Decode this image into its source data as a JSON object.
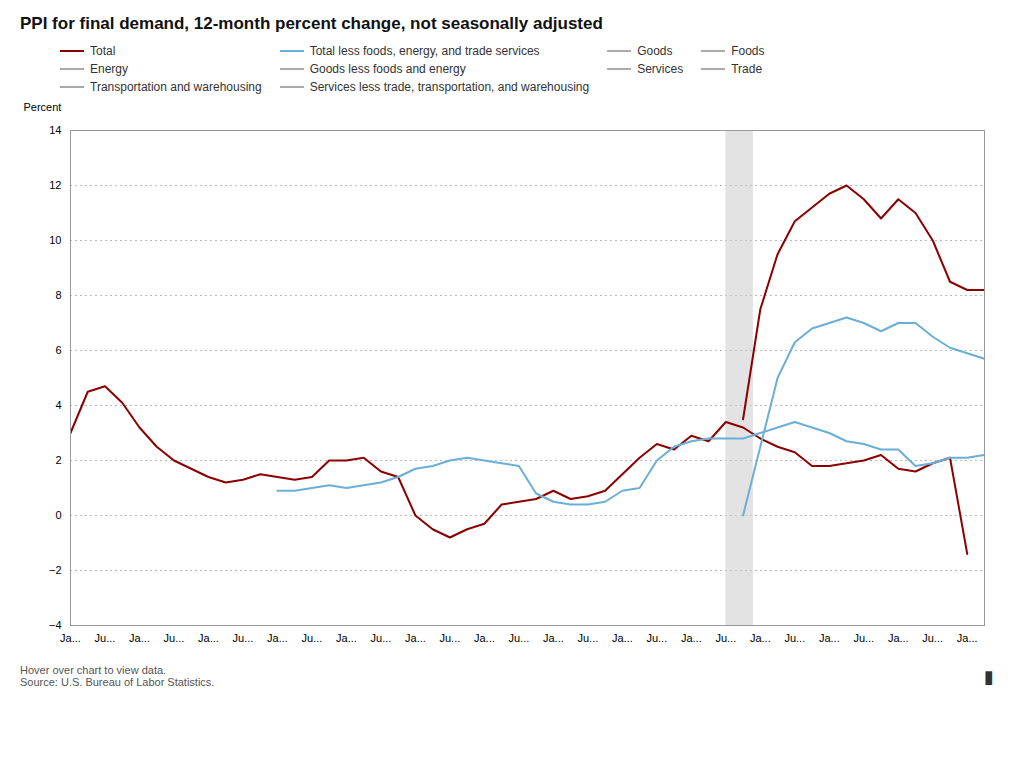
{
  "chart_data": {
    "type": "line",
    "title": "PPI for final demand, 12-month percent change, not seasonally adjusted",
    "ylabel": "Percent",
    "ylim": [
      -4.0,
      14.0
    ],
    "yticks": [
      -4,
      -2,
      0,
      2,
      4,
      6,
      8,
      10,
      12,
      14
    ],
    "xlim": [
      0,
      26.5
    ],
    "xticks": [
      {
        "value": 0,
        "label": "Ja..."
      },
      {
        "value": 1,
        "label": "Ju..."
      },
      {
        "value": 2,
        "label": "Ja..."
      },
      {
        "value": 3,
        "label": "Ju..."
      },
      {
        "value": 4,
        "label": "Ja..."
      },
      {
        "value": 5,
        "label": "Ju..."
      },
      {
        "value": 6,
        "label": "Ja..."
      },
      {
        "value": 7,
        "label": "Ju..."
      },
      {
        "value": 8,
        "label": "Ja..."
      },
      {
        "value": 9,
        "label": "Ju..."
      },
      {
        "value": 10,
        "label": "Ja..."
      },
      {
        "value": 11,
        "label": "Ju..."
      },
      {
        "value": 12,
        "label": "Ja..."
      },
      {
        "value": 13,
        "label": "Ju..."
      },
      {
        "value": 14,
        "label": "Ja..."
      },
      {
        "value": 15,
        "label": "Ju..."
      },
      {
        "value": 16,
        "label": "Ja..."
      },
      {
        "value": 17,
        "label": "Ju..."
      },
      {
        "value": 18,
        "label": "Ja..."
      },
      {
        "value": 19,
        "label": "Ju..."
      },
      {
        "value": 20,
        "label": "Ja..."
      },
      {
        "value": 21,
        "label": "Ju..."
      },
      {
        "value": 22,
        "label": "Ja..."
      },
      {
        "value": 23,
        "label": "Ju..."
      },
      {
        "value": 24,
        "label": "Ja..."
      },
      {
        "value": 25,
        "label": "Ju..."
      },
      {
        "value": 26,
        "label": "Ja..."
      }
    ],
    "grid": true,
    "shaded_region": {
      "x": [
        19.0,
        19.8
      ],
      "color": "#cccccc"
    },
    "series": [
      {
        "name": "Total",
        "color": "#8b0000",
        "x": [
          0,
          0.5,
          1,
          1.5,
          2,
          2.5,
          3,
          3.5,
          4,
          4.5,
          5,
          5.5,
          6,
          6.5,
          7,
          7.5,
          8,
          8.5,
          9,
          9.5,
          10,
          10.5,
          11,
          11.5,
          12,
          12.5,
          13,
          13.5,
          14,
          14.5,
          15,
          15.5,
          16,
          16.5,
          17,
          17.5,
          18,
          18.5,
          19,
          19.5,
          20,
          20.5,
          21,
          21.5,
          22,
          22.5,
          23,
          23.5,
          24,
          24.5,
          25,
          25.5,
          26,
          null,
          19.5,
          20,
          20.5,
          21,
          21.5,
          22,
          22.5,
          23,
          23.5,
          24,
          24.5,
          25,
          25.5,
          26,
          26.5
        ],
        "values": [
          3.0,
          4.5,
          4.7,
          4.1,
          3.2,
          2.5,
          2.0,
          1.7,
          1.4,
          1.2,
          1.3,
          1.5,
          1.4,
          1.3,
          1.4,
          2.0,
          2.0,
          2.1,
          1.6,
          1.4,
          0.0,
          -0.5,
          -0.8,
          -0.5,
          -0.3,
          0.4,
          0.5,
          0.6,
          0.9,
          0.6,
          0.7,
          0.9,
          1.5,
          2.1,
          2.6,
          2.4,
          2.9,
          2.7,
          3.4,
          3.2,
          2.8,
          2.5,
          2.3,
          1.8,
          1.8,
          1.9,
          2.0,
          2.2,
          1.7,
          1.6,
          1.9,
          2.1,
          -1.4,
          null,
          3.5,
          7.5,
          9.5,
          10.7,
          11.2,
          11.7,
          12.0,
          11.5,
          10.8,
          11.5,
          11.0,
          10.0,
          8.5,
          8.2,
          8.2
        ]
      },
      {
        "name": "Total less foods, energy, and trade services",
        "color": "#6baed6",
        "x": [
          6,
          6.5,
          7,
          7.5,
          8,
          8.5,
          9,
          9.5,
          10,
          10.5,
          11,
          11.5,
          12,
          12.5,
          13,
          13.5,
          14,
          14.5,
          15,
          15.5,
          16,
          16.5,
          17,
          17.5,
          18,
          18.5,
          19,
          19.5,
          20,
          20.5,
          21,
          21.5,
          22,
          22.5,
          23,
          23.5,
          24,
          24.5,
          25,
          25.5,
          26,
          26.5,
          null,
          19.5,
          20,
          20.5,
          21,
          21.5,
          22,
          22.5,
          23,
          23.5,
          24,
          24.5,
          25,
          25.5,
          26,
          26.5
        ],
        "values": [
          0.9,
          0.9,
          1.0,
          1.1,
          1.0,
          1.1,
          1.2,
          1.4,
          1.7,
          1.8,
          2.0,
          2.1,
          2.0,
          1.9,
          1.8,
          0.8,
          0.5,
          0.4,
          0.4,
          0.5,
          0.9,
          1.0,
          2.0,
          2.5,
          2.7,
          2.8,
          2.8,
          2.8,
          3.0,
          3.2,
          3.4,
          3.2,
          3.0,
          2.7,
          2.6,
          2.4,
          2.4,
          1.8,
          1.9,
          2.1,
          2.1,
          2.2,
          null,
          0.0,
          2.5,
          5.0,
          6.3,
          6.8,
          7.0,
          7.2,
          7.0,
          6.7,
          7.0,
          7.0,
          6.5,
          6.1,
          5.9,
          5.7
        ]
      },
      {
        "name": "Goods",
        "color": "#aaaaaa",
        "x": [],
        "values": []
      },
      {
        "name": "Foods",
        "color": "#aaaaaa",
        "x": [],
        "values": []
      },
      {
        "name": "Energy",
        "color": "#aaaaaa",
        "x": [],
        "values": []
      },
      {
        "name": "Goods less foods and energy",
        "color": "#aaaaaa",
        "x": [],
        "values": []
      },
      {
        "name": "Services",
        "color": "#aaaaaa",
        "x": [],
        "values": []
      },
      {
        "name": "Trade",
        "color": "#aaaaaa",
        "x": [],
        "values": []
      },
      {
        "name": "Transportation and warehousing",
        "color": "#aaaaaa",
        "x": [],
        "values": []
      },
      {
        "name": "Services less trade, transportation, and warehousing",
        "color": "#aaaaaa",
        "x": [],
        "values": []
      }
    ],
    "footer": [
      "Hover over chart to view data.",
      "Source: U.S. Bureau of Labor Statistics."
    ],
    "logo": "▮"
  }
}
